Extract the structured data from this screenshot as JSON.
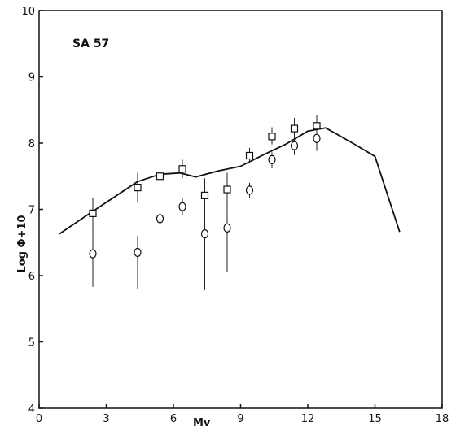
{
  "chart_data": {
    "type": "scatter",
    "annotation": "SA 57",
    "xlabel": "Mv",
    "ylabel": "Log Φ+10",
    "xlim": [
      0,
      18
    ],
    "ylim": [
      4,
      10
    ],
    "xticks": [
      0,
      3,
      6,
      9,
      12,
      15,
      18
    ],
    "yticks": [
      4,
      5,
      6,
      7,
      8,
      9,
      10
    ],
    "grid": false,
    "series": [
      {
        "kind": "line",
        "points": [
          [
            0.9,
            6.63
          ],
          [
            2.4,
            6.97
          ],
          [
            4.4,
            7.42
          ],
          [
            5.4,
            7.53
          ],
          [
            6.3,
            7.55
          ],
          [
            7.0,
            7.49
          ],
          [
            8.0,
            7.58
          ],
          [
            9.0,
            7.65
          ],
          [
            10.0,
            7.82
          ],
          [
            11.0,
            7.98
          ],
          [
            12.0,
            8.18
          ],
          [
            12.8,
            8.23
          ],
          [
            14.0,
            8.0
          ],
          [
            15.0,
            7.8
          ],
          [
            16.1,
            6.66
          ]
        ]
      },
      {
        "kind": "square-markers",
        "points": [
          {
            "x": 2.4,
            "y": 6.94,
            "lo": 6.63,
            "hi": 7.18
          },
          {
            "x": 4.4,
            "y": 7.33,
            "lo": 7.1,
            "hi": 7.55
          },
          {
            "x": 5.4,
            "y": 7.5,
            "lo": 7.33,
            "hi": 7.66
          },
          {
            "x": 6.4,
            "y": 7.61,
            "lo": 7.47,
            "hi": 7.75
          },
          {
            "x": 7.4,
            "y": 7.21,
            "lo": 6.62,
            "hi": 7.47
          },
          {
            "x": 8.4,
            "y": 7.3,
            "lo": 6.96,
            "hi": 7.55
          },
          {
            "x": 9.4,
            "y": 7.81,
            "lo": 7.7,
            "hi": 7.93
          },
          {
            "x": 10.4,
            "y": 8.1,
            "lo": 7.98,
            "hi": 8.24
          },
          {
            "x": 11.4,
            "y": 8.22,
            "lo": 8.08,
            "hi": 8.38
          },
          {
            "x": 12.4,
            "y": 8.26,
            "lo": 8.12,
            "hi": 8.42
          }
        ]
      },
      {
        "kind": "circle-markers",
        "points": [
          {
            "x": 2.4,
            "y": 6.33,
            "lo": 5.83,
            "hi": 6.63
          },
          {
            "x": 4.4,
            "y": 6.35,
            "lo": 5.8,
            "hi": 6.6
          },
          {
            "x": 5.4,
            "y": 6.86,
            "lo": 6.68,
            "hi": 7.02
          },
          {
            "x": 6.4,
            "y": 7.04,
            "lo": 6.92,
            "hi": 7.18
          },
          {
            "x": 7.4,
            "y": 6.63,
            "lo": 5.78,
            "hi": 7.21
          },
          {
            "x": 8.4,
            "y": 6.72,
            "lo": 6.05,
            "hi": 6.96
          },
          {
            "x": 9.4,
            "y": 7.29,
            "lo": 7.18,
            "hi": 7.4
          },
          {
            "x": 10.4,
            "y": 7.75,
            "lo": 7.62,
            "hi": 7.86
          },
          {
            "x": 11.4,
            "y": 7.96,
            "lo": 7.82,
            "hi": 8.08
          },
          {
            "x": 12.4,
            "y": 8.07,
            "lo": 7.88,
            "hi": 8.18
          }
        ]
      }
    ]
  }
}
